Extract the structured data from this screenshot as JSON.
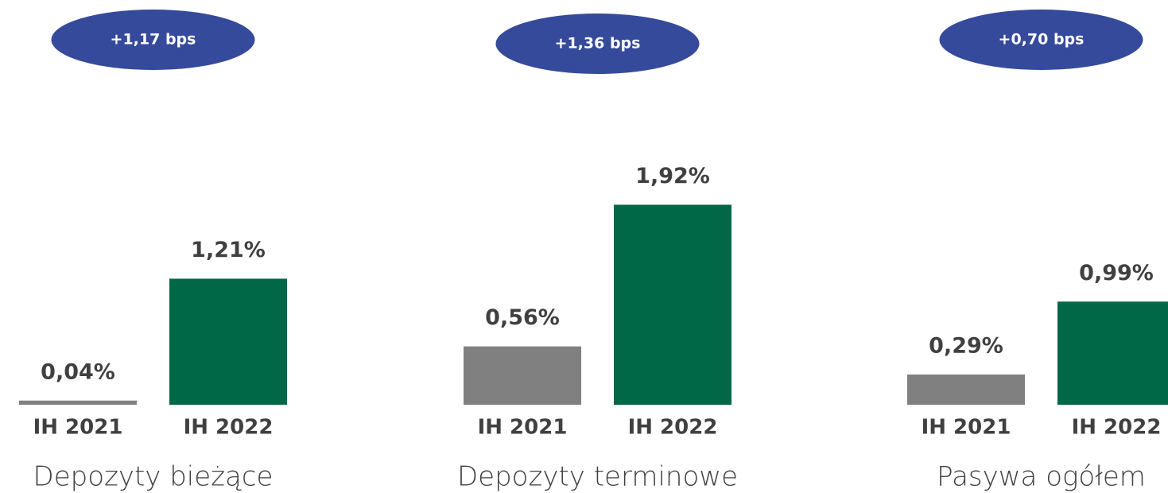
{
  "chart_data": [
    {
      "type": "bar",
      "title": "Depozyty bieżące",
      "annotation": "+1,17 bps",
      "categories": [
        "IH 2021",
        "IH 2022"
      ],
      "values": [
        0.04,
        1.21
      ],
      "value_labels": [
        "0,04%",
        "1,21%"
      ],
      "colors": [
        "#808080",
        "#006747"
      ]
    },
    {
      "type": "bar",
      "title": "Depozyty terminowe",
      "annotation": "+1,36 bps",
      "categories": [
        "IH 2021",
        "IH 2022"
      ],
      "values": [
        0.56,
        1.92
      ],
      "value_labels": [
        "0,56%",
        "1,92%"
      ],
      "colors": [
        "#808080",
        "#006747"
      ]
    },
    {
      "type": "bar",
      "title": "Pasywa ogółem",
      "annotation": "+0,70 bps",
      "categories": [
        "IH 2021",
        "IH 2022"
      ],
      "values": [
        0.29,
        0.99
      ],
      "value_labels": [
        "0,29%",
        "0,99%"
      ],
      "colors": [
        "#808080",
        "#006747"
      ]
    }
  ]
}
